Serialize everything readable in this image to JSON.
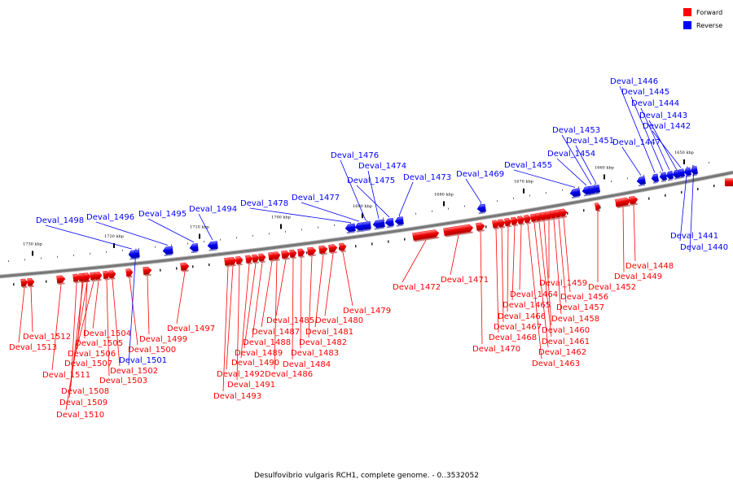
{
  "legend": {
    "forward_label": "Forward",
    "reverse_label": "Reverse",
    "forward_color": "#ff0000",
    "reverse_color": "#0000ff"
  },
  "caption": "Desulfovibrio vulgaris RCH1, complete genome. - 0..3532052",
  "backbone_color": "#777777",
  "scale_labels": [
    "1730 kbp",
    "1720 kbp",
    "1710 kbp",
    "1700 kbp",
    "1690 kbp",
    "1680 kbp",
    "1670 kbp",
    "1660 kbp",
    "1650 kbp"
  ],
  "genes": [
    {
      "name": "Deval_1512",
      "strand": "forward"
    },
    {
      "name": "Deval_1513",
      "strand": "forward"
    },
    {
      "name": "Deval_1511",
      "strand": "forward"
    },
    {
      "name": "Deval_1508",
      "strand": "forward"
    },
    {
      "name": "Deval_1509",
      "strand": "forward"
    },
    {
      "name": "Deval_1510",
      "strand": "forward"
    },
    {
      "name": "Deval_1504",
      "strand": "forward"
    },
    {
      "name": "Deval_1505",
      "strand": "forward"
    },
    {
      "name": "Deval_1506",
      "strand": "forward"
    },
    {
      "name": "Deval_1507",
      "strand": "forward"
    },
    {
      "name": "Deval_1502",
      "strand": "forward"
    },
    {
      "name": "Deval_1503",
      "strand": "forward"
    },
    {
      "name": "Deval_1500",
      "strand": "forward"
    },
    {
      "name": "Deval_1501",
      "strand": "reverse"
    },
    {
      "name": "Deval_1499",
      "strand": "forward"
    },
    {
      "name": "Deval_1497",
      "strand": "forward"
    },
    {
      "name": "Deval_1498",
      "strand": "reverse"
    },
    {
      "name": "Deval_1496",
      "strand": "reverse"
    },
    {
      "name": "Deval_1495",
      "strand": "reverse"
    },
    {
      "name": "Deval_1494",
      "strand": "reverse"
    },
    {
      "name": "Deval_1478",
      "strand": "reverse"
    },
    {
      "name": "Deval_1477",
      "strand": "reverse"
    },
    {
      "name": "Deval_1476",
      "strand": "reverse"
    },
    {
      "name": "Deval_1474",
      "strand": "reverse"
    },
    {
      "name": "Deval_1475",
      "strand": "reverse"
    },
    {
      "name": "Deval_1473",
      "strand": "reverse"
    },
    {
      "name": "Deval_1469",
      "strand": "reverse"
    },
    {
      "name": "Deval_1455",
      "strand": "reverse"
    },
    {
      "name": "Deval_1454",
      "strand": "reverse"
    },
    {
      "name": "Deval_1451",
      "strand": "reverse"
    },
    {
      "name": "Deval_1453",
      "strand": "reverse"
    },
    {
      "name": "Deval_1447",
      "strand": "reverse"
    },
    {
      "name": "Deval_1446",
      "strand": "reverse"
    },
    {
      "name": "Deval_1445",
      "strand": "reverse"
    },
    {
      "name": "Deval_1444",
      "strand": "reverse"
    },
    {
      "name": "Deval_1443",
      "strand": "reverse"
    },
    {
      "name": "Deval_1442",
      "strand": "reverse"
    },
    {
      "name": "Deval_1441",
      "strand": "reverse"
    },
    {
      "name": "Deval_1440",
      "strand": "reverse"
    },
    {
      "name": "Deval_1493",
      "strand": "forward"
    },
    {
      "name": "Deval_1492",
      "strand": "forward"
    },
    {
      "name": "Deval_1491",
      "strand": "forward"
    },
    {
      "name": "Deval_1490",
      "strand": "forward"
    },
    {
      "name": "Deval_1489",
      "strand": "forward"
    },
    {
      "name": "Deval_1488",
      "strand": "forward"
    },
    {
      "name": "Deval_1487",
      "strand": "forward"
    },
    {
      "name": "Deval_1486",
      "strand": "forward"
    },
    {
      "name": "Deval_1485",
      "strand": "forward"
    },
    {
      "name": "Deval_1484",
      "strand": "forward"
    },
    {
      "name": "Deval_1483",
      "strand": "forward"
    },
    {
      "name": "Deval_1482",
      "strand": "forward"
    },
    {
      "name": "Deval_1481",
      "strand": "forward"
    },
    {
      "name": "Deval_1480",
      "strand": "forward"
    },
    {
      "name": "Deval_1479",
      "strand": "forward"
    },
    {
      "name": "Deval_1472",
      "strand": "forward"
    },
    {
      "name": "Deval_1471",
      "strand": "forward"
    },
    {
      "name": "Deval_1470",
      "strand": "forward"
    },
    {
      "name": "Deval_1468",
      "strand": "forward"
    },
    {
      "name": "Deval_1467",
      "strand": "forward"
    },
    {
      "name": "Deval_1466",
      "strand": "forward"
    },
    {
      "name": "Deval_1465",
      "strand": "forward"
    },
    {
      "name": "Deval_1464",
      "strand": "forward"
    },
    {
      "name": "Deval_1463",
      "strand": "forward"
    },
    {
      "name": "Deval_1462",
      "strand": "forward"
    },
    {
      "name": "Deval_1461",
      "strand": "forward"
    },
    {
      "name": "Deval_1460",
      "strand": "forward"
    },
    {
      "name": "Deval_1459",
      "strand": "forward"
    },
    {
      "name": "Deval_1458",
      "strand": "forward"
    },
    {
      "name": "Deval_1457",
      "strand": "forward"
    },
    {
      "name": "Deval_1456",
      "strand": "forward"
    },
    {
      "name": "Deval_1452",
      "strand": "forward"
    },
    {
      "name": "Deval_1449",
      "strand": "forward"
    },
    {
      "name": "Deval_1448",
      "strand": "forward"
    }
  ]
}
